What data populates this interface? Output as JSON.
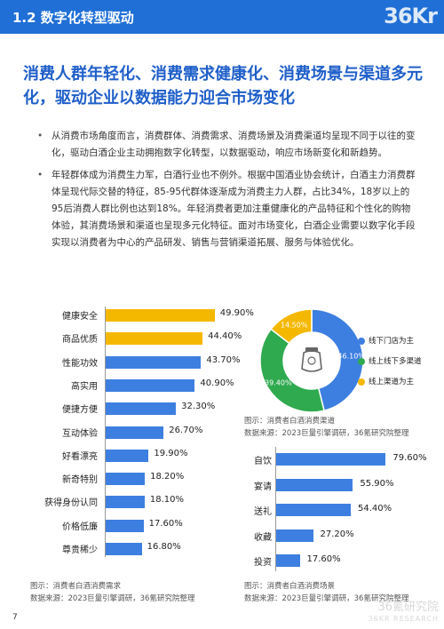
{
  "header": {
    "section_title": "1.2 数字化转型驱动",
    "logo_text": "36Kr"
  },
  "headline": "消费人群年轻化、消费需求健康化、消费场景与渠道多元化，驱动企业以数据能力迎合市场变化",
  "bullets": [
    "从消费市场角度而言，消费群体、消费需求、消费场景及消费渠道均呈现不同于以往的变化，驱动白酒企业主动拥抱数字化转型，以数据驱动，响应市场新变化和新趋势。",
    "年轻群体成为消费生力军，白酒行业也不例外。根据中国酒业协会统计，白酒主力消费群体呈现代际交替的特征，85-95代群体逐渐成为消费主力人群，占比34%，18岁以上的95后消费人群比例也达到18%。年轻消费者更加注重健康化的产品特征和个性化的购物体验，其消费场景和渠道也呈现多元化特征。面对市场变化，白酒企业需要以数字化手段实现以消费者为中心的产品研发、销售与营销渠道拓展、服务与体验优化。"
  ],
  "chart_data": [
    {
      "type": "bar",
      "orientation": "horizontal",
      "categories": [
        "健康安全",
        "商品优质",
        "性能功效",
        "高实用",
        "便捷方便",
        "互动体验",
        "好看漂亮",
        "新奇特别",
        "获得身份认同",
        "价格低廉",
        "尊贵稀少"
      ],
      "values": [
        49.9,
        44.4,
        43.7,
        40.9,
        32.3,
        26.7,
        19.9,
        18.2,
        18.1,
        17.6,
        16.8
      ],
      "value_labels": [
        "49.90%",
        "44.40%",
        "43.70%",
        "40.90%",
        "32.30%",
        "26.70%",
        "19.90%",
        "18.20%",
        "18.10%",
        "17.60%",
        "16.80%"
      ],
      "highlight_count": 2,
      "colors": {
        "highlight": "#f5b800",
        "normal": "#3d7fe0"
      },
      "caption": "图示：消费者白酒消费需求",
      "source": "数据来源：2023巨量引擎调研，36氪研究院整理"
    },
    {
      "type": "pie",
      "labels": [
        "线下门店为主",
        "线上线下多渠道",
        "线上渠道为主"
      ],
      "values": [
        46.1,
        39.4,
        14.5
      ],
      "value_labels": [
        "46.10%",
        "39.40%",
        "14.50%"
      ],
      "colors": [
        "#3d7fe0",
        "#2faa4f",
        "#f5b800"
      ],
      "caption": "图示：消费者白酒消费渠道",
      "source": "数据来源：2023巨量引擎调研，36氪研究院整理"
    },
    {
      "type": "bar",
      "orientation": "horizontal",
      "categories": [
        "自饮",
        "宴请",
        "送礼",
        "收藏",
        "投资"
      ],
      "values": [
        79.6,
        55.9,
        54.4,
        27.2,
        17.6
      ],
      "value_labels": [
        "79.60%",
        "55.90%",
        "54.40%",
        "27.20%",
        "17.60%"
      ],
      "colors": {
        "normal": "#3d7fe0"
      },
      "caption": "图示：消费者白酒消费场景",
      "source": "数据来源：2023巨量引擎调研，36氪研究院整理"
    }
  ],
  "watermark": {
    "text": "36氪研究院",
    "sub": "36KR RESEARCH"
  },
  "page_number": "7"
}
